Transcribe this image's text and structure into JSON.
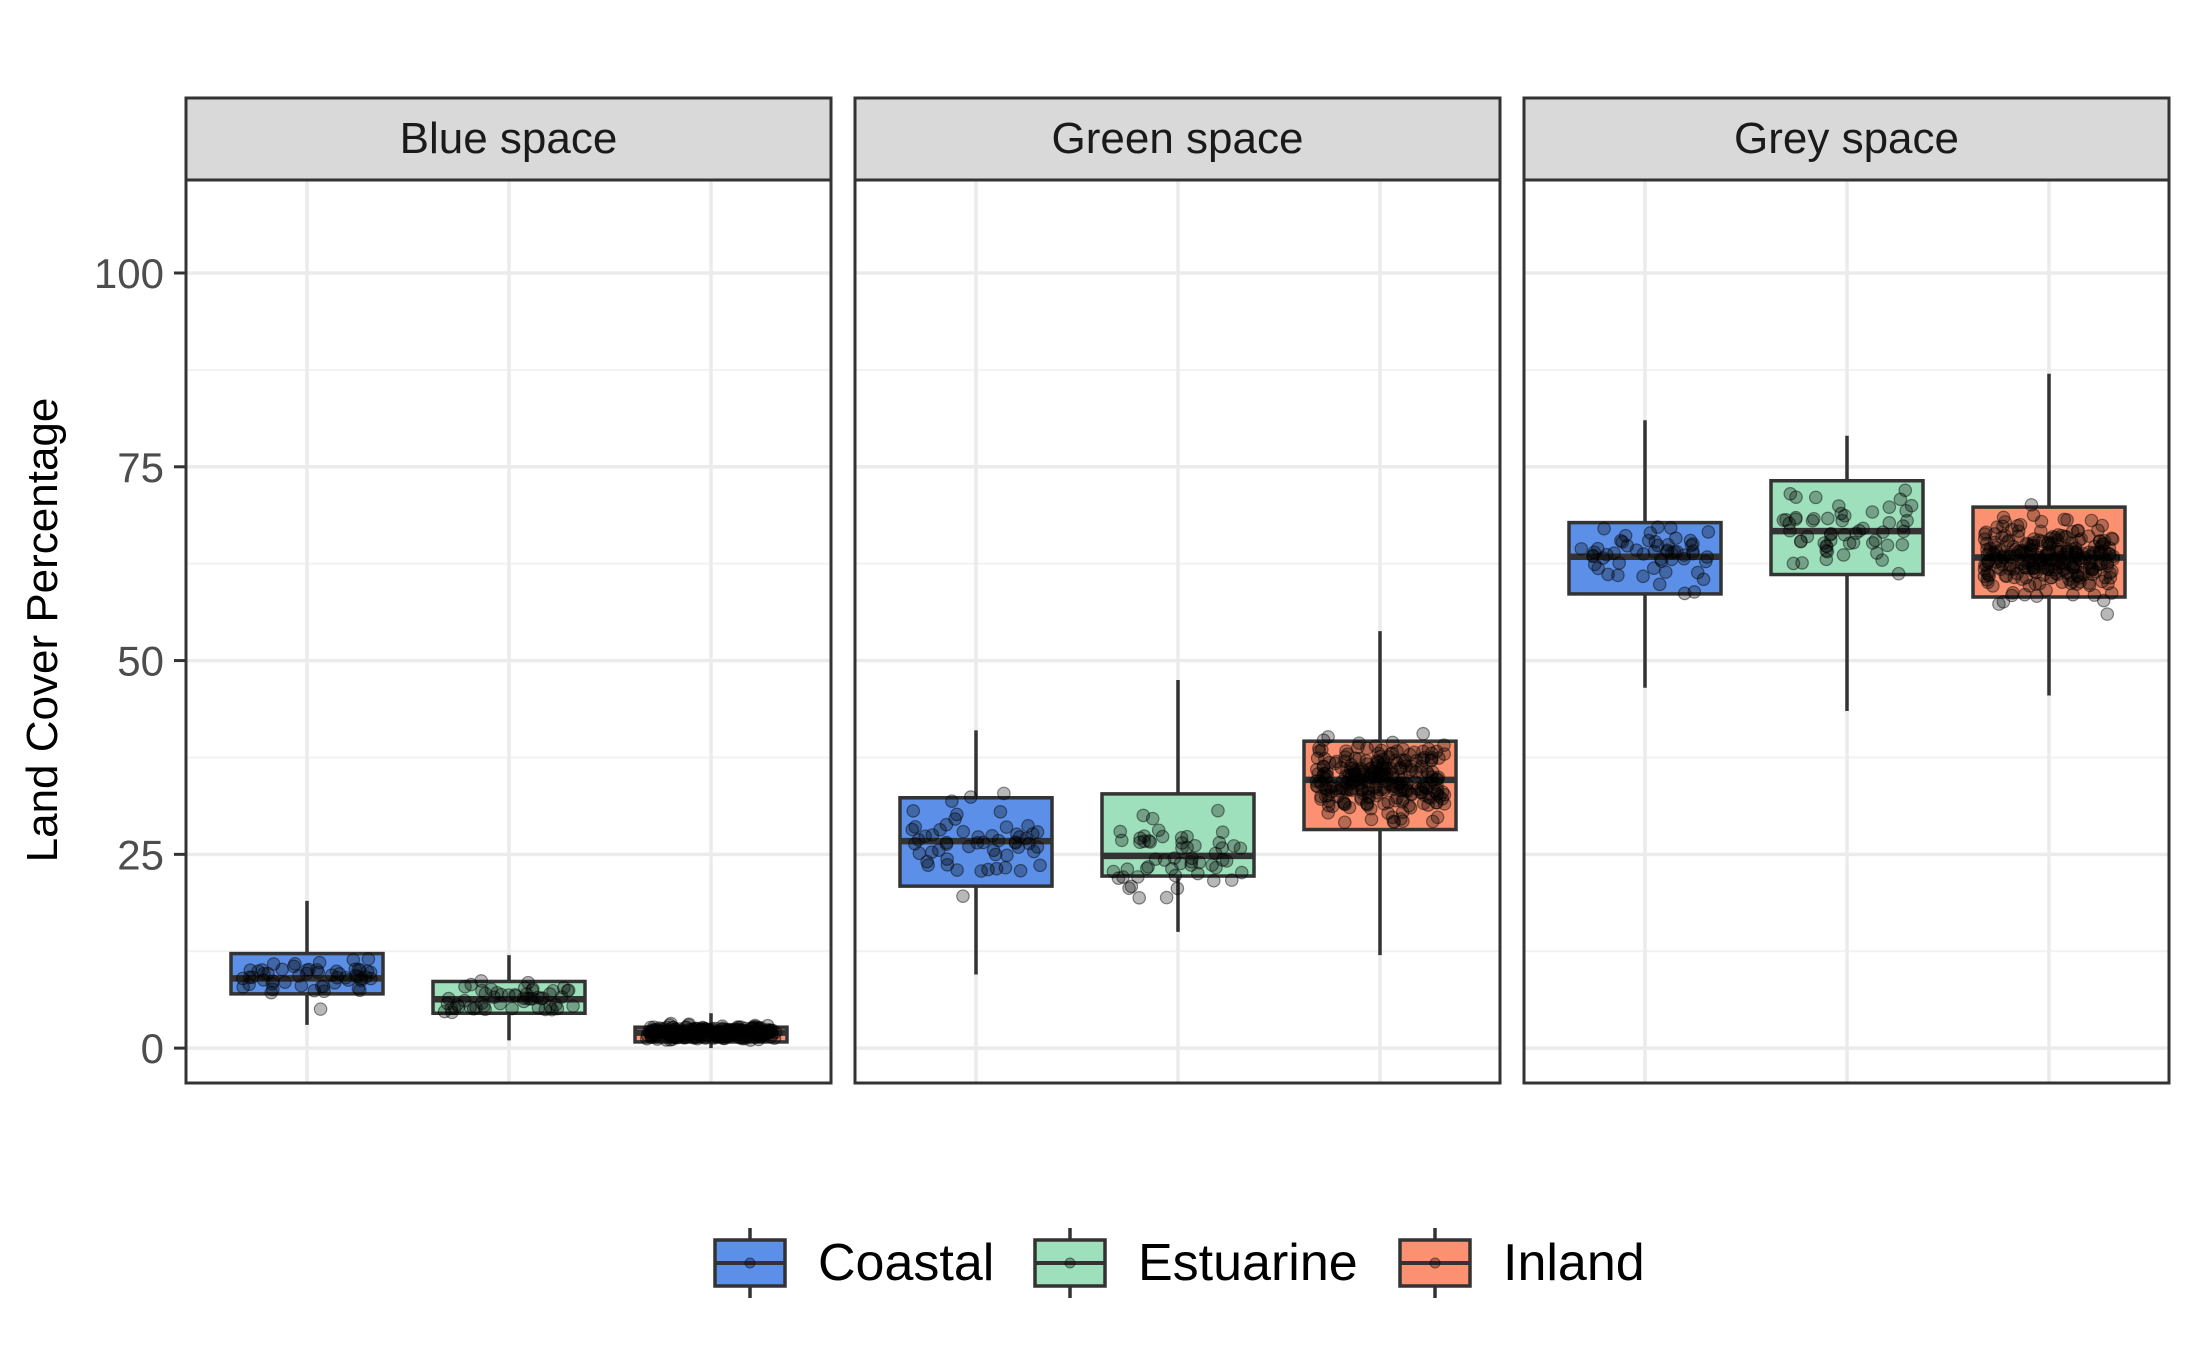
{
  "chart_data": {
    "type": "box",
    "ylabel": "Land Cover Percentage",
    "xlabel": "",
    "ylim": [
      -4.5,
      112
    ],
    "yticks": [
      0,
      25,
      50,
      75,
      100
    ],
    "grid": true,
    "legend_position": "bottom",
    "categories": [
      "Coastal",
      "Estuarine",
      "Inland"
    ],
    "colors": {
      "Coastal": "#5b8fe8",
      "Estuarine": "#9ee0bc",
      "Inland": "#fc9171"
    },
    "facets": [
      {
        "label": "Blue space",
        "boxes": [
          {
            "category": "Coastal",
            "min": 3,
            "q1": 7,
            "median": 9,
            "q3": 12.2,
            "max": 19
          },
          {
            "category": "Estuarine",
            "min": 1,
            "q1": 4.5,
            "median": 6.3,
            "q3": 8.6,
            "max": 12
          },
          {
            "category": "Inland",
            "min": 0,
            "q1": 0.8,
            "median": 2,
            "q3": 2.7,
            "max": 4.5
          }
        ]
      },
      {
        "label": "Green space",
        "boxes": [
          {
            "category": "Coastal",
            "min": 9.5,
            "q1": 20.9,
            "median": 26.7,
            "q3": 32.3,
            "max": 41
          },
          {
            "category": "Estuarine",
            "min": 15,
            "q1": 22.2,
            "median": 24.8,
            "q3": 32.8,
            "max": 47.5
          },
          {
            "category": "Inland",
            "min": 12,
            "q1": 28.2,
            "median": 34.6,
            "q3": 39.6,
            "max": 53.8
          }
        ]
      },
      {
        "label": "Grey space",
        "boxes": [
          {
            "category": "Coastal",
            "min": 46.5,
            "q1": 58.6,
            "median": 63.4,
            "q3": 67.8,
            "max": 81
          },
          {
            "category": "Estuarine",
            "min": 43.5,
            "q1": 61.1,
            "median": 66.7,
            "q3": 73.2,
            "max": 79
          },
          {
            "category": "Inland",
            "min": 45.5,
            "q1": 58.2,
            "median": 63.3,
            "q3": 69.8,
            "max": 87
          }
        ]
      }
    ]
  }
}
